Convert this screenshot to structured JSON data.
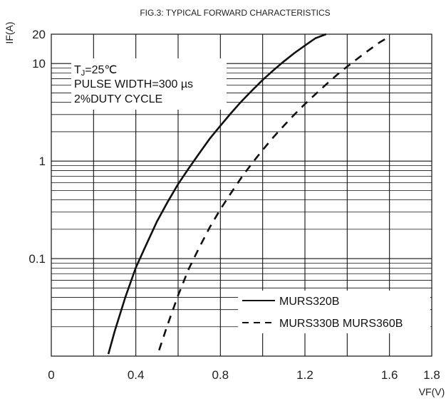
{
  "chart_data": {
    "type": "line",
    "title": "FIG.3: TYPICAL FORWARD CHARACTERISTICS",
    "xlabel": "VF(V)",
    "ylabel": "IF(A)",
    "x_ticks": [
      "0",
      "0.4",
      "0.8",
      "1.2",
      "1.6",
      "1.8"
    ],
    "y_ticks": [
      "20",
      "10",
      "1",
      "0.1"
    ],
    "xlim": [
      0,
      1.8
    ],
    "ylim": [
      0.01,
      20
    ],
    "y_scale": "log",
    "grid": true,
    "annotation": {
      "line1_main": "T",
      "line1_sub": "J",
      "line1_rest": "=25℃",
      "line2": "PULSE WIDTH=300 µs",
      "line3": "2%DUTY CYCLE"
    },
    "legend_position": "bottom-right",
    "series": [
      {
        "name": "MURS320B",
        "style": "solid",
        "x": [
          0.27,
          0.3,
          0.35,
          0.4,
          0.45,
          0.5,
          0.55,
          0.6,
          0.65,
          0.7,
          0.75,
          0.8,
          0.85,
          0.9,
          0.95,
          1.0,
          1.05,
          1.1,
          1.15,
          1.2,
          1.25,
          1.3
        ],
        "y": [
          0.0105,
          0.018,
          0.04,
          0.081,
          0.14,
          0.24,
          0.38,
          0.58,
          0.84,
          1.2,
          1.7,
          2.3,
          3.1,
          4.1,
          5.3,
          6.8,
          8.5,
          10.5,
          12.8,
          15.3,
          18.2,
          20.0
        ]
      },
      {
        "name": "MURS330B MURS360B",
        "style": "dashed",
        "x": [
          0.51,
          0.55,
          0.6,
          0.65,
          0.7,
          0.75,
          0.8,
          0.85,
          0.9,
          0.95,
          1.0,
          1.05,
          1.1,
          1.15,
          1.2,
          1.25,
          1.3,
          1.35,
          1.4,
          1.45,
          1.5,
          1.55,
          1.6
        ],
        "y": [
          0.0115,
          0.021,
          0.042,
          0.078,
          0.13,
          0.21,
          0.32,
          0.47,
          0.68,
          0.95,
          1.3,
          1.75,
          2.3,
          3.0,
          3.85,
          4.85,
          6.1,
          7.6,
          9.3,
          11.3,
          13.6,
          16.3,
          19.0
        ]
      }
    ]
  }
}
